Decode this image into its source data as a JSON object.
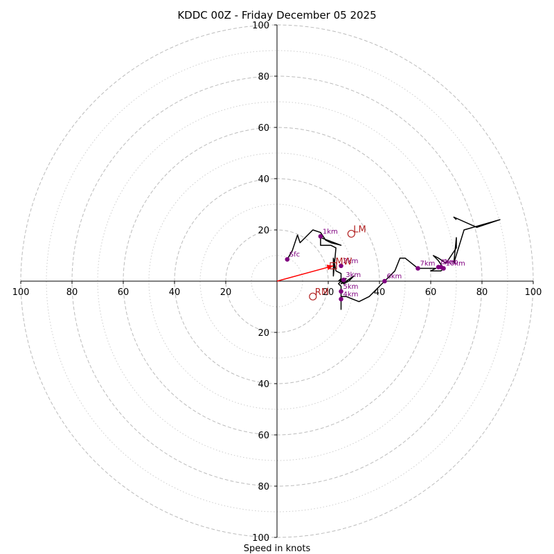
{
  "chart_data": {
    "type": "scatter",
    "title": "KDDC 00Z - Friday December 05 2025",
    "xlabel": "Speed in knots",
    "range": 100,
    "ring_major": [
      20,
      40,
      60,
      80,
      100
    ],
    "ring_minor": [
      10,
      30,
      50,
      70,
      90
    ],
    "x_tick_labels": [
      "100",
      "80",
      "60",
      "40",
      "20",
      "20",
      "40",
      "60",
      "80",
      "100"
    ],
    "x_tick_values": [
      -100,
      -80,
      -60,
      -40,
      -20,
      20,
      40,
      60,
      80,
      100
    ],
    "y_tick_labels": [
      "100",
      "80",
      "60",
      "40",
      "20",
      "20",
      "40",
      "60",
      "80",
      "100"
    ],
    "y_tick_values": [
      100,
      80,
      60,
      40,
      20,
      -20,
      -40,
      -60,
      -80,
      -100
    ],
    "colors": {
      "hodo": "#000000",
      "points": "#800080",
      "markers": "#b22222",
      "arrow": "#ff0000",
      "grid": "#bbbbbb"
    },
    "hodograph_line": [
      [
        4,
        8.5
      ],
      [
        6,
        12
      ],
      [
        8,
        18
      ],
      [
        9,
        15
      ],
      [
        14,
        20
      ],
      [
        17,
        19
      ],
      [
        19,
        16
      ],
      [
        21,
        15
      ],
      [
        25,
        14
      ],
      [
        17,
        17
      ],
      [
        17,
        14
      ],
      [
        21,
        14
      ],
      [
        23,
        13
      ],
      [
        22,
        2
      ],
      [
        22,
        9
      ],
      [
        23,
        4
      ],
      [
        25,
        3
      ],
      [
        25,
        0
      ],
      [
        25,
        1
      ],
      [
        24,
        0
      ],
      [
        26,
        1
      ],
      [
        27,
        1
      ],
      [
        25,
        -1
      ],
      [
        27,
        0
      ],
      [
        30,
        2
      ],
      [
        28,
        0
      ],
      [
        26,
        -1
      ],
      [
        25,
        0
      ],
      [
        24,
        -1
      ],
      [
        25,
        -2
      ],
      [
        25,
        -4
      ],
      [
        25,
        -6
      ],
      [
        25,
        -11
      ],
      [
        25,
        -6
      ],
      [
        27,
        -6
      ],
      [
        32,
        -8
      ],
      [
        36,
        -6
      ],
      [
        40,
        -2
      ],
      [
        42,
        0
      ],
      [
        46,
        4
      ],
      [
        48,
        9
      ],
      [
        50,
        9
      ],
      [
        55,
        5
      ],
      [
        58,
        5
      ],
      [
        60,
        5
      ],
      [
        62,
        5
      ],
      [
        60,
        4
      ],
      [
        64,
        4
      ],
      [
        65,
        5
      ],
      [
        63,
        8
      ],
      [
        61,
        10
      ],
      [
        63,
        9
      ],
      [
        66,
        7
      ],
      [
        68,
        10
      ],
      [
        70,
        13
      ],
      [
        70,
        17
      ],
      [
        69,
        7
      ],
      [
        73,
        20
      ],
      [
        87,
        24
      ],
      [
        78,
        21
      ],
      [
        69,
        25
      ],
      [
        70,
        24
      ]
    ],
    "height_points": [
      {
        "label": "Sfc",
        "x": 4,
        "y": 8.5
      },
      {
        "label": "1km",
        "x": 17,
        "y": 17.5
      },
      {
        "label": "2km",
        "x": 25,
        "y": 6
      },
      {
        "label": "3km",
        "x": 26,
        "y": 0.5
      },
      {
        "label": "4km",
        "x": 25,
        "y": -7
      },
      {
        "label": "5km",
        "x": 25,
        "y": -4
      },
      {
        "label": "6km",
        "x": 42,
        "y": 0
      },
      {
        "label": "7km",
        "x": 55,
        "y": 5
      },
      {
        "label": "8km",
        "x": 63,
        "y": 5.5
      },
      {
        "label": "9km",
        "x": 64,
        "y": 5.5
      },
      {
        "label": "10km",
        "x": 65,
        "y": 5
      }
    ],
    "storm_markers": [
      {
        "label": "LM",
        "x": 29,
        "y": 18.5
      },
      {
        "label": "RM",
        "x": 14,
        "y": -6
      },
      {
        "label": "MW",
        "x": 22,
        "y": 6
      }
    ],
    "mean_wind_vector": {
      "x": 22,
      "y": 6
    }
  }
}
